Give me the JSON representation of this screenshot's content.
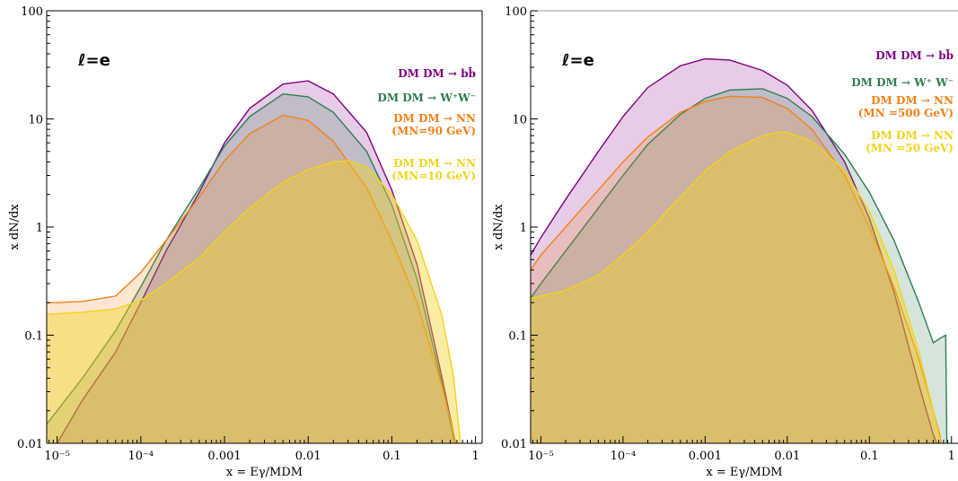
{
  "colors": {
    "bb": "#800080",
    "ww": "#2e7d4f",
    "nn90": "#f28118",
    "nn10": "#f2d31a",
    "axis": "#000000",
    "frame_top_right": "#9a9a9a"
  },
  "chart_data": [
    {
      "type": "area",
      "panel_label": "ℓ=e",
      "xlabel": "x = Eγ/MDM",
      "ylabel": "x dN/dx",
      "xscale": "log",
      "yscale": "log",
      "xlim": [
        7.5e-06,
        1.2
      ],
      "ylim": [
        0.01,
        100
      ],
      "x_ticks": [
        "10⁻⁵",
        "10⁻⁴",
        "0.001",
        "0.01",
        "0.1",
        "1"
      ],
      "y_ticks": [
        "0.01",
        "0.1",
        "1",
        "10",
        "100"
      ],
      "grid": false,
      "legend_position": "right",
      "series": [
        {
          "name": "DM DM → bb̄",
          "color_key": "bb",
          "x": [
            7.5e-06,
            1e-05,
            2e-05,
            5e-05,
            0.0001,
            0.0002,
            0.0005,
            0.001,
            0.002,
            0.005,
            0.01,
            0.02,
            0.05,
            0.1,
            0.2,
            0.4,
            0.55,
            0.62
          ],
          "y": [
            0.003,
            0.01,
            0.025,
            0.07,
            0.2,
            0.6,
            2.1,
            6.0,
            12.5,
            21.0,
            22.5,
            17.0,
            7.5,
            2.2,
            0.45,
            0.04,
            0.012,
            0.008
          ]
        },
        {
          "name": "DM DM → W⁺W⁻",
          "color_key": "ww",
          "x": [
            7.5e-06,
            1e-05,
            2e-05,
            5e-05,
            0.0001,
            0.0002,
            0.0005,
            0.001,
            0.002,
            0.005,
            0.01,
            0.02,
            0.05,
            0.1,
            0.2,
            0.4,
            0.55,
            0.62
          ],
          "y": [
            0.015,
            0.02,
            0.04,
            0.11,
            0.28,
            0.75,
            2.3,
            5.6,
            10.5,
            17.0,
            16.0,
            11.5,
            5.0,
            1.6,
            0.33,
            0.035,
            0.011,
            0.008
          ]
        },
        {
          "name": "DM DM → NN",
          "sublabel": "(MN=90 GeV)",
          "color_key": "nn90",
          "x": [
            7.5e-06,
            1e-05,
            2e-05,
            5e-05,
            0.0001,
            0.0002,
            0.0005,
            0.001,
            0.002,
            0.005,
            0.01,
            0.02,
            0.05,
            0.1,
            0.2,
            0.4,
            0.55,
            0.62
          ],
          "y": [
            0.2,
            0.2,
            0.205,
            0.23,
            0.38,
            0.75,
            1.9,
            4.1,
            7.3,
            10.8,
            9.7,
            6.2,
            2.3,
            0.75,
            0.2,
            0.033,
            0.012,
            0.008
          ]
        },
        {
          "name": "DM DM → NN",
          "sublabel": "(MN=10 GeV)",
          "color_key": "nn10",
          "x": [
            7.5e-06,
            1e-05,
            2e-05,
            5e-05,
            0.0001,
            0.0002,
            0.0005,
            0.001,
            0.002,
            0.005,
            0.01,
            0.02,
            0.03,
            0.05,
            0.1,
            0.2,
            0.4,
            0.55,
            0.68
          ],
          "y": [
            0.155,
            0.158,
            0.163,
            0.175,
            0.21,
            0.3,
            0.52,
            0.9,
            1.5,
            2.6,
            3.4,
            4.0,
            4.1,
            3.6,
            2.0,
            0.75,
            0.15,
            0.04,
            0.008
          ]
        }
      ]
    },
    {
      "type": "area",
      "panel_label": "ℓ=e",
      "xlabel": "x = Eγ/MDM",
      "ylabel": "x dN/dx",
      "xscale": "log",
      "yscale": "log",
      "xlim": [
        7.5e-06,
        1.2
      ],
      "ylim": [
        0.01,
        100
      ],
      "x_ticks": [
        "10⁻⁵",
        "10⁻⁴",
        "0.001",
        "0.01",
        "0.1",
        "1"
      ],
      "y_ticks": [
        "0.01",
        "0.1",
        "1",
        "10",
        "100"
      ],
      "grid": false,
      "legend_position": "right",
      "series": [
        {
          "name": "DM DM → bb̄",
          "color_key": "bb",
          "x": [
            7.5e-06,
            1e-05,
            2e-05,
            5e-05,
            0.0001,
            0.0002,
            0.0005,
            0.001,
            0.002,
            0.005,
            0.01,
            0.02,
            0.05,
            0.1,
            0.2,
            0.4,
            0.6,
            0.7,
            0.75
          ],
          "y": [
            0.55,
            0.8,
            1.8,
            5.0,
            10.5,
            19.5,
            31.0,
            36.0,
            35.0,
            28.0,
            20.5,
            12.0,
            4.0,
            1.2,
            0.25,
            0.035,
            0.012,
            0.009,
            0.008
          ]
        },
        {
          "name": "DM DM → W⁺ W⁻",
          "color_key": "ww",
          "x": [
            7.5e-06,
            1e-05,
            2e-05,
            5e-05,
            0.0001,
            0.0002,
            0.0005,
            0.001,
            0.002,
            0.005,
            0.01,
            0.02,
            0.05,
            0.1,
            0.2,
            0.4,
            0.6,
            0.75,
            0.85,
            0.88
          ],
          "y": [
            0.22,
            0.3,
            0.6,
            1.5,
            3.0,
            5.8,
            11.0,
            15.5,
            18.5,
            19.0,
            15.5,
            10.5,
            4.7,
            2.1,
            0.75,
            0.2,
            0.085,
            0.095,
            0.1,
            0.008
          ]
        },
        {
          "name": "DM DM → NN",
          "sublabel": "(MN =500 GeV)",
          "color_key": "nn90",
          "x": [
            7.5e-06,
            1e-05,
            2e-05,
            5e-05,
            0.0001,
            0.0002,
            0.0005,
            0.001,
            0.002,
            0.005,
            0.01,
            0.02,
            0.05,
            0.1,
            0.2,
            0.4,
            0.6,
            0.72,
            0.78
          ],
          "y": [
            0.4,
            0.55,
            1.0,
            2.2,
            4.0,
            6.8,
            11.5,
            14.5,
            16.2,
            15.8,
            12.5,
            8.0,
            3.0,
            1.0,
            0.28,
            0.06,
            0.02,
            0.012,
            0.008
          ]
        },
        {
          "name": "DM DM → NN",
          "sublabel": "(MN =50 GeV)",
          "color_key": "nn10",
          "x": [
            7.5e-06,
            1e-05,
            2e-05,
            5e-05,
            0.0001,
            0.0002,
            0.0005,
            0.001,
            0.002,
            0.005,
            0.008,
            0.01,
            0.02,
            0.05,
            0.1,
            0.2,
            0.4,
            0.6,
            0.72,
            0.76
          ],
          "y": [
            0.22,
            0.23,
            0.26,
            0.36,
            0.55,
            0.9,
            1.9,
            3.3,
            5.0,
            7.0,
            7.6,
            7.5,
            6.2,
            3.3,
            1.4,
            0.4,
            0.07,
            0.02,
            0.011,
            0.008
          ]
        }
      ]
    }
  ],
  "legends": [
    [
      {
        "line1": "DM DM → bb̄",
        "line2": "",
        "color_key": "bb"
      },
      {
        "line1": "DM DM → W⁺W⁻",
        "line2": "",
        "color_key": "ww"
      },
      {
        "line1": "DM DM → NN",
        "line2": "(MN=90 GeV)",
        "color_key": "nn90"
      },
      {
        "line1": "DM DM → NN",
        "line2": "(MN=10 GeV)",
        "color_key": "nn10"
      }
    ],
    [
      {
        "line1": "DM DM → bb̄",
        "line2": "",
        "color_key": "bb"
      },
      {
        "line1": "DM DM → W⁺ W⁻",
        "line2": "",
        "color_key": "ww"
      },
      {
        "line1": "DM DM → NN",
        "line2": "(MN =500 GeV)",
        "color_key": "nn90"
      },
      {
        "line1": "DM DM → NN",
        "line2": "(MN =50 GeV)",
        "color_key": "nn10"
      }
    ]
  ]
}
